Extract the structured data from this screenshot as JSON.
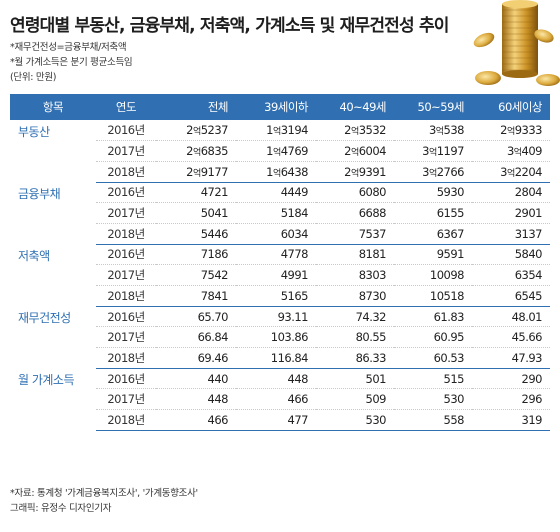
{
  "title": "연령대별 부동산, 금융부채, 저축액, 가계소득 및 재무건전성 추이",
  "notes": [
    "*재무건전성=금융부채/저축액",
    "*월 가계소득은 분기 평균소득임",
    "(단위: 만원)"
  ],
  "header": [
    "항목",
    "연도",
    "전체",
    "39세이하",
    "40~49세",
    "50~59세",
    "60세이상"
  ],
  "eok_unit": "억",
  "groups": [
    {
      "name": "부동산",
      "rows": [
        {
          "year": "2016년",
          "cells": [
            [
              "2",
              "5237"
            ],
            [
              "1",
              "3194"
            ],
            [
              "2",
              "3532"
            ],
            [
              "3",
              "538"
            ],
            [
              "2",
              "9333"
            ]
          ]
        },
        {
          "year": "2017년",
          "cells": [
            [
              "2",
              "6835"
            ],
            [
              "1",
              "4769"
            ],
            [
              "2",
              "6004"
            ],
            [
              "3",
              "1197"
            ],
            [
              "3",
              "409"
            ]
          ]
        },
        {
          "year": "2018년",
          "cells": [
            [
              "2",
              "9177"
            ],
            [
              "1",
              "6438"
            ],
            [
              "2",
              "9391"
            ],
            [
              "3",
              "2766"
            ],
            [
              "3",
              "2204"
            ]
          ]
        }
      ]
    },
    {
      "name": "금융부채",
      "rows": [
        {
          "year": "2016년",
          "cells": [
            "4721",
            "4449",
            "6080",
            "5930",
            "2804"
          ]
        },
        {
          "year": "2017년",
          "cells": [
            "5041",
            "5184",
            "6688",
            "6155",
            "2901"
          ]
        },
        {
          "year": "2018년",
          "cells": [
            "5446",
            "6034",
            "7537",
            "6367",
            "3137"
          ]
        }
      ]
    },
    {
      "name": "저축액",
      "rows": [
        {
          "year": "2016년",
          "cells": [
            "7186",
            "4778",
            "8181",
            "9591",
            "5840"
          ]
        },
        {
          "year": "2017년",
          "cells": [
            "7542",
            "4991",
            "8303",
            "10098",
            "6354"
          ]
        },
        {
          "year": "2018년",
          "cells": [
            "7841",
            "5165",
            "8730",
            "10518",
            "6545"
          ]
        }
      ]
    },
    {
      "name": "재무건전성",
      "rows": [
        {
          "year": "2016년",
          "cells": [
            "65.70",
            "93.11",
            "74.32",
            "61.83",
            "48.01"
          ]
        },
        {
          "year": "2017년",
          "cells": [
            "66.84",
            "103.86",
            "80.55",
            "60.95",
            "45.66"
          ]
        },
        {
          "year": "2018년",
          "cells": [
            "69.46",
            "116.84",
            "86.33",
            "60.53",
            "47.93"
          ]
        }
      ]
    },
    {
      "name": "월 가계소득",
      "rows": [
        {
          "year": "2016년",
          "cells": [
            "440",
            "448",
            "501",
            "515",
            "290"
          ]
        },
        {
          "year": "2017년",
          "cells": [
            "448",
            "466",
            "509",
            "530",
            "296"
          ]
        },
        {
          "year": "2018년",
          "cells": [
            "466",
            "477",
            "530",
            "558",
            "319"
          ]
        }
      ]
    }
  ],
  "footer": {
    "source": "*자료: 통계청 '가계금융복지조사', '가계동향조사'",
    "credit": "그래픽: 유정수 디자인기자"
  },
  "colors": {
    "accent": "#2f6fb2",
    "coin": "#d9a93a"
  },
  "decoration": "gold-coins-stack"
}
